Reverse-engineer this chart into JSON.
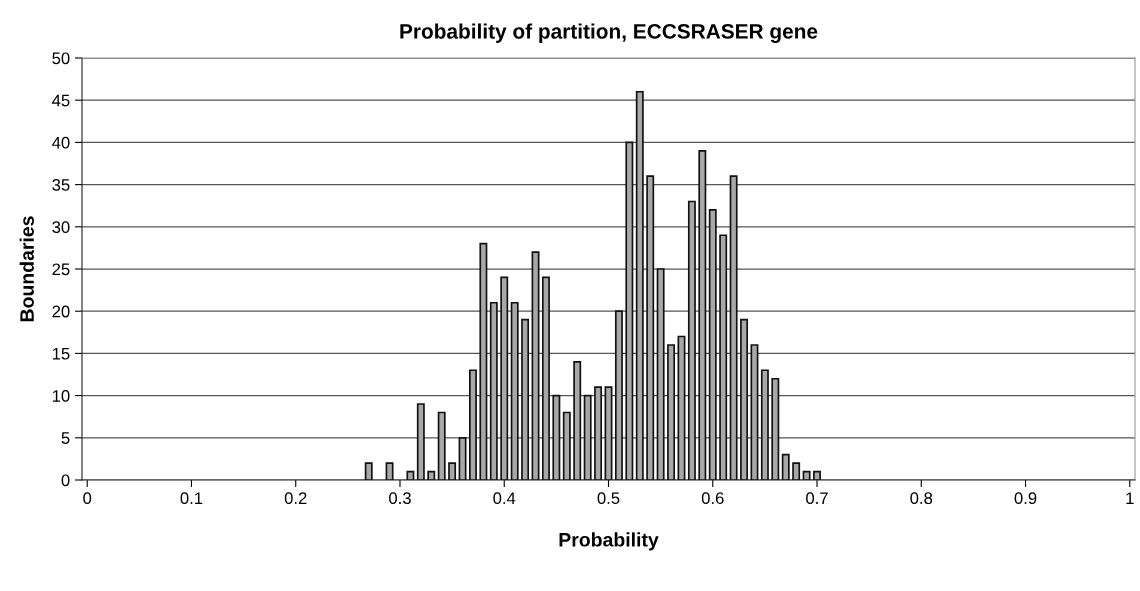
{
  "chart_data": {
    "type": "bar",
    "title": "Probability of partition, ECCSRASER gene",
    "xlabel": "Probability",
    "ylabel": "Boundaries",
    "categories": [
      "0",
      null,
      null,
      null,
      null,
      null,
      null,
      null,
      null,
      null,
      "0.1",
      null,
      null,
      null,
      null,
      null,
      null,
      null,
      null,
      null,
      "0.2",
      null,
      null,
      null,
      null,
      null,
      null,
      null,
      null,
      null,
      "0.3",
      null,
      null,
      null,
      null,
      null,
      null,
      null,
      null,
      null,
      "0.4",
      null,
      null,
      null,
      null,
      null,
      null,
      null,
      null,
      null,
      "0.5",
      null,
      null,
      null,
      null,
      null,
      null,
      null,
      null,
      null,
      "0.6",
      null,
      null,
      null,
      null,
      null,
      null,
      null,
      null,
      null,
      "0.7",
      null,
      null,
      null,
      null,
      null,
      null,
      null,
      null,
      null,
      "0.8",
      null,
      null,
      null,
      null,
      null,
      null,
      null,
      null,
      null,
      "0.9",
      null,
      null,
      null,
      null,
      null,
      null,
      null,
      null,
      null,
      "1"
    ],
    "values": [
      0,
      0,
      0,
      0,
      0,
      0,
      0,
      0,
      0,
      0,
      0,
      0,
      0,
      0,
      0,
      0,
      0,
      0,
      0,
      0,
      0,
      0,
      0,
      0,
      0,
      0,
      0,
      2,
      0,
      2,
      0,
      1,
      9,
      1,
      8,
      2,
      5,
      13,
      28,
      21,
      24,
      21,
      19,
      27,
      24,
      10,
      8,
      14,
      10,
      11,
      11,
      20,
      40,
      46,
      36,
      25,
      16,
      17,
      33,
      39,
      32,
      29,
      36,
      19,
      16,
      13,
      12,
      3,
      2,
      1,
      1,
      0,
      0,
      0,
      0,
      0,
      0,
      0,
      0,
      0,
      0,
      0,
      0,
      0,
      0,
      0,
      0,
      0,
      0,
      0,
      0,
      0,
      0,
      0,
      0,
      0,
      0,
      0,
      0,
      0,
      0
    ],
    "color": "#a8a8a8",
    "ylim": [
      0,
      50
    ],
    "yticks": [
      0,
      5,
      10,
      15,
      20,
      25,
      30,
      35,
      40,
      45,
      50
    ],
    "grid": "y",
    "legend": false
  }
}
